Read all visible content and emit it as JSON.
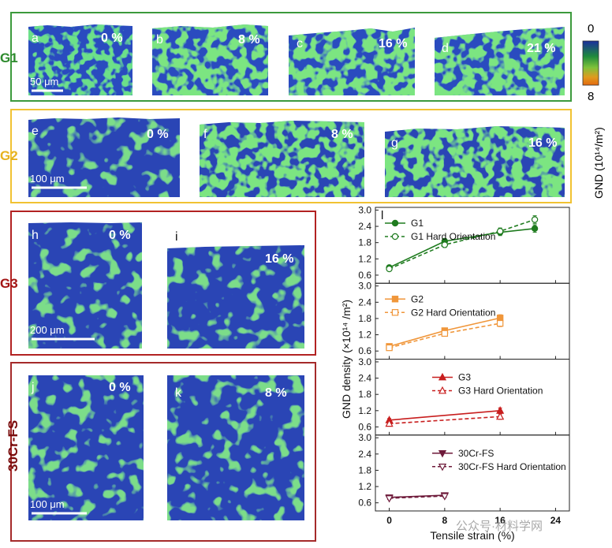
{
  "colorbar": {
    "top_label": "0",
    "bottom_label": "8",
    "title": "GND (10¹⁴/m²)",
    "colors": [
      "#1b2f9e",
      "#1f8a3c",
      "#7ec23a",
      "#e09a1e",
      "#e46a10"
    ]
  },
  "groups": [
    {
      "name": "G1",
      "color": "#2e8b2e",
      "border": "#3c9a3c",
      "panels": [
        {
          "letter": "a",
          "strain": "0 %"
        },
        {
          "letter": "b",
          "strain": "8 %"
        },
        {
          "letter": "c",
          "strain": "16 %"
        },
        {
          "letter": "d",
          "strain": "21 %"
        }
      ],
      "scale_bar": "50 μm"
    },
    {
      "name": "G2",
      "color": "#e6b21e",
      "border": "#f1c232",
      "panels": [
        {
          "letter": "e",
          "strain": "0 %"
        },
        {
          "letter": "f",
          "strain": "8 %"
        },
        {
          "letter": "g",
          "strain": "16 %"
        }
      ],
      "scale_bar": "100 μm"
    },
    {
      "name": "G3",
      "color": "#a31515",
      "border": "#b22222",
      "panels": [
        {
          "letter": "h",
          "strain": "0 %"
        },
        {
          "letter": "i",
          "strain": "16 %"
        }
      ],
      "scale_bar": "200 μm"
    },
    {
      "name": "30Cr-FS",
      "color": "#7a0d0d",
      "border": "#a52a2a",
      "panels": [
        {
          "letter": "j",
          "strain": "0 %"
        },
        {
          "letter": "k",
          "strain": "8 %"
        }
      ],
      "scale_bar": "100 μm"
    }
  ],
  "chart_data": {
    "type": "line",
    "panel_letter": "l",
    "xlabel": "Tensile strain (%)",
    "ylabel": "GND density (×10¹⁴ /m²)",
    "xlim": [
      -2,
      26
    ],
    "xticks": [
      "0",
      "8",
      "16",
      "24"
    ],
    "ylim": [
      0.3,
      3.1
    ],
    "yticks": [
      "0.6",
      "1.2",
      "1.8",
      "2.4",
      "3.0"
    ],
    "subplots": [
      {
        "color": "#1e7b1e",
        "series": [
          {
            "name": "G1",
            "marker": "filled-circle",
            "dash": false,
            "x": [
              0,
              8,
              16,
              21
            ],
            "y": [
              0.88,
              1.85,
              2.18,
              2.32
            ],
            "err": [
              0.06,
              0.1,
              0.12,
              0.14
            ]
          },
          {
            "name": "G1 Hard Orientation",
            "marker": "open-circle",
            "dash": true,
            "x": [
              0,
              8,
              16,
              21
            ],
            "y": [
              0.83,
              1.72,
              2.22,
              2.65
            ],
            "err": [
              0.06,
              0.1,
              0.12,
              0.14
            ]
          }
        ]
      },
      {
        "color": "#f0963a",
        "series": [
          {
            "name": "G2",
            "marker": "filled-square",
            "dash": false,
            "x": [
              0,
              8,
              16
            ],
            "y": [
              0.77,
              1.35,
              1.82
            ],
            "err": [
              0.06,
              0.08,
              0.12
            ]
          },
          {
            "name": "G2 Hard Orientation",
            "marker": "open-square",
            "dash": true,
            "x": [
              0,
              8,
              16
            ],
            "y": [
              0.72,
              1.25,
              1.62
            ],
            "err": [
              0.06,
              0.08,
              0.12
            ]
          }
        ]
      },
      {
        "color": "#c81e1e",
        "series": [
          {
            "name": "G3",
            "marker": "filled-triangle",
            "dash": false,
            "x": [
              0,
              16
            ],
            "y": [
              0.85,
              1.2
            ],
            "err": [
              0.06,
              0.1
            ]
          },
          {
            "name": "G3 Hard Orientation",
            "marker": "open-triangle",
            "dash": true,
            "x": [
              0,
              16
            ],
            "y": [
              0.72,
              0.98
            ],
            "err": [
              0.06,
              0.1
            ]
          }
        ]
      },
      {
        "color": "#6e1a3a",
        "series": [
          {
            "name": "30Cr-FS",
            "marker": "filled-down-triangle",
            "dash": false,
            "x": [
              0,
              8
            ],
            "y": [
              0.8,
              0.88
            ],
            "err": [
              0.05,
              0.06
            ]
          },
          {
            "name": "30Cr-FS Hard Orientation",
            "marker": "open-down-triangle",
            "dash": true,
            "x": [
              0,
              8
            ],
            "y": [
              0.77,
              0.85
            ],
            "err": [
              0.05,
              0.06
            ]
          }
        ]
      }
    ]
  },
  "watermark": "公众号·材料学网"
}
